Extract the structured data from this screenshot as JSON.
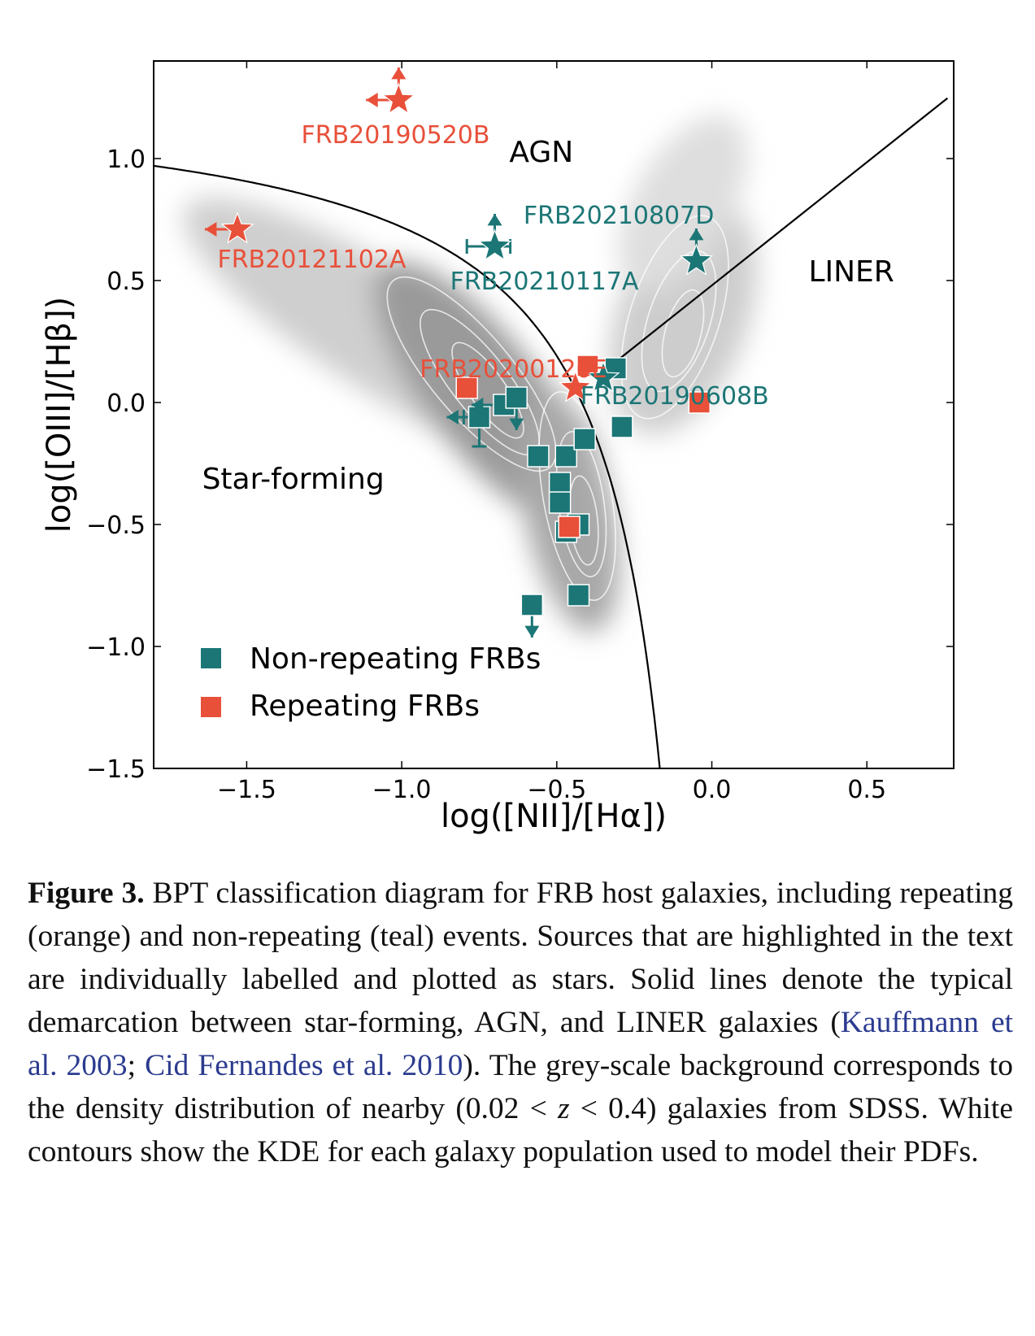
{
  "chart_data": {
    "type": "scatter",
    "xlabel": "log([NII]/[Hα])",
    "ylabel": "log([OIII]/[Hβ])",
    "xlim": [
      -1.8,
      0.78
    ],
    "ylim": [
      -1.5,
      1.4
    ],
    "x_ticks": [
      -1.5,
      -1.0,
      -0.5,
      0.0,
      0.5
    ],
    "y_ticks": [
      -1.5,
      -1.0,
      -0.5,
      0.0,
      0.5,
      1.0
    ],
    "x_tick_labels": [
      "−1.5",
      "−1.0",
      "−0.5",
      "0.0",
      "0.5"
    ],
    "y_tick_labels": [
      "−1.5",
      "−1.0",
      "−0.5",
      "0.0",
      "0.5",
      "1.0"
    ],
    "grid": false,
    "legend": {
      "position": "lower-left",
      "entries": [
        {
          "label": "Non-repeating FRBs",
          "color": "#1c7676"
        },
        {
          "label": "Repeating FRBs",
          "color": "#e8503a"
        }
      ]
    },
    "region_labels": [
      {
        "text": "AGN",
        "x": -0.55,
        "y": 1.03
      },
      {
        "text": "LINER",
        "x": 0.45,
        "y": 0.54
      },
      {
        "text": "Star-forming",
        "x": -1.35,
        "y": -0.31
      }
    ],
    "demarcation_lines": [
      {
        "name": "Kauffmann et al. 2003",
        "equation": "y = 0.61/(x - 0.05) + 1.3",
        "x_range": [
          -1.8,
          -0.16
        ]
      },
      {
        "name": "Cid Fernandes et al. 2010",
        "equation": "y = 1.01x + 0.48",
        "x_range": [
          -0.3,
          0.76
        ]
      }
    ],
    "series": [
      {
        "name": "Non-repeating FRBs",
        "color": "#1c7676",
        "points": [
          {
            "x": -0.75,
            "y": -0.06,
            "xlimit": "upper",
            "xerr": [
              0.05,
              0.0
            ],
            "yerr": [
              0.12,
              0.0
            ]
          },
          {
            "x": -0.67,
            "y": -0.01,
            "xlimit": "upper"
          },
          {
            "x": -0.63,
            "y": 0.02,
            "ylimit": "upper"
          },
          {
            "x": -0.56,
            "y": -0.22
          },
          {
            "x": -0.47,
            "y": -0.22
          },
          {
            "x": -0.41,
            "y": -0.15
          },
          {
            "x": -0.29,
            "y": -0.1
          },
          {
            "x": -0.49,
            "y": -0.33
          },
          {
            "x": -0.49,
            "y": -0.41
          },
          {
            "x": -0.47,
            "y": -0.53
          },
          {
            "x": -0.43,
            "y": -0.5
          },
          {
            "x": -0.58,
            "y": -0.83,
            "ylimit": "upper"
          },
          {
            "x": -0.43,
            "y": -0.79
          },
          {
            "x": -0.31,
            "y": 0.14
          }
        ]
      },
      {
        "name": "Repeating FRBs",
        "color": "#e8503a",
        "points": [
          {
            "x": -0.79,
            "y": 0.06
          },
          {
            "x": -0.4,
            "y": 0.15
          },
          {
            "x": -0.46,
            "y": -0.51
          },
          {
            "x": -0.04,
            "y": 0.0
          }
        ]
      }
    ],
    "highlighted": [
      {
        "label": "FRB20190520B",
        "x": -1.01,
        "y": 1.24,
        "color": "#e8503a",
        "xlimit": "upper",
        "ylimit": "lower",
        "label_x": -1.02,
        "label_y": 1.1,
        "label_anchor": "middle"
      },
      {
        "label": "FRB20121102A",
        "x": -1.53,
        "y": 0.71,
        "color": "#e8503a",
        "xlimit": "upper",
        "label_x": -1.29,
        "label_y": 0.59,
        "label_anchor": "middle"
      },
      {
        "label": "FRB20210807D",
        "x": -0.05,
        "y": 0.58,
        "color": "#1c7676",
        "ylimit": "lower",
        "label_x": -0.3,
        "label_y": 0.77,
        "label_anchor": "middle"
      },
      {
        "label": "FRB20210117A",
        "x": -0.7,
        "y": 0.64,
        "color": "#1c7676",
        "ylimit": "lower",
        "xerr": [
          0.09,
          0.05
        ],
        "label_x": -0.54,
        "label_y": 0.5,
        "label_anchor": "middle"
      },
      {
        "label": "FRB20200120E",
        "x": -0.44,
        "y": 0.06,
        "color": "#e8503a",
        "label_x": -0.64,
        "label_y": 0.14,
        "label_anchor": "middle"
      },
      {
        "label": "FRB20190608B",
        "x": -0.35,
        "y": 0.1,
        "color": "#1c7676",
        "label_x": -0.12,
        "label_y": 0.03,
        "label_anchor": "middle"
      }
    ]
  },
  "caption": {
    "label": "Figure 3.",
    "text_1": " BPT classification diagram for FRB host galaxies, including repeating (orange) and non-repeating (teal) events. Sources that are highlighted in the text are individually labelled and plotted as stars. Solid lines denote the typical demarcation between star-forming, AGN, and LINER galaxies (",
    "cite_1": "Kauffmann et al. 2003",
    "sep": "; ",
    "cite_2": "Cid Fernandes et al. 2010",
    "text_2": "). The grey-scale background corresponds to the density distribution of nearby (0.02 < ",
    "math_z": "z",
    "text_3": " < 0.4) galaxies from SDSS. White contours show the KDE for each galaxy population used to model their PDFs."
  }
}
